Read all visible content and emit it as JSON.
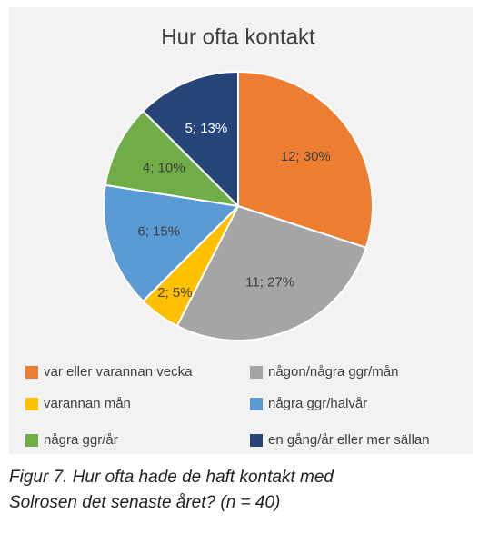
{
  "chart_data": {
    "type": "pie",
    "title": "Hur ofta kontakt",
    "categories": [
      "var eller varannan vecka",
      "någon/några ggr/mån",
      "varannan mån",
      "några ggr/halvår",
      "några ggr/år",
      "en gång/år eller mer sällan"
    ],
    "values": [
      12,
      11,
      2,
      6,
      4,
      5
    ],
    "value_labels": [
      "12; 30%",
      "11; 27%",
      "2; 5%",
      "6; 15%",
      "4; 10%",
      "5; 13%"
    ],
    "colors": [
      "#ed7d31",
      "#a5a5a5",
      "#ffc000",
      "#5b9bd5",
      "#70ad47",
      "#264478"
    ],
    "legend": "bottom"
  },
  "caption": "Figur 7. Hur ofta hade de haft kontakt med Solrosen det senaste året? (n = 40)"
}
